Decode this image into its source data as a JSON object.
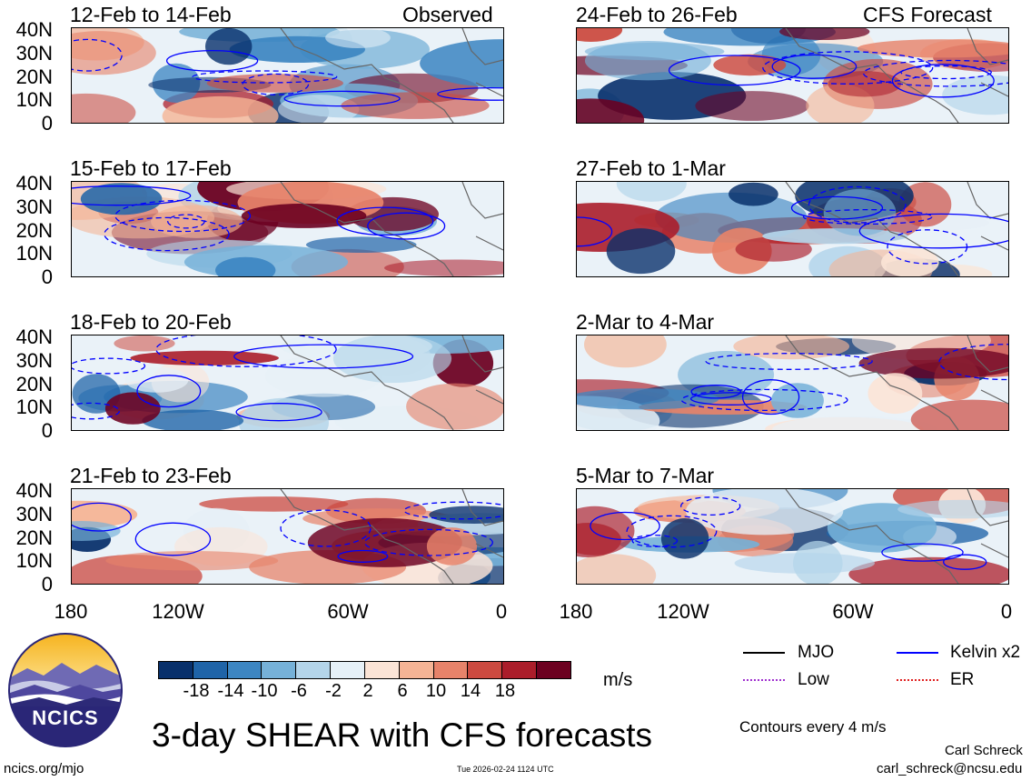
{
  "panels": [
    {
      "title": "12-Feb to 14-Feb",
      "tag": "Observed"
    },
    {
      "title": "24-Feb to 26-Feb",
      "tag": "CFS Forecast"
    },
    {
      "title": "15-Feb to 17-Feb",
      "tag": ""
    },
    {
      "title": "27-Feb to 1-Mar",
      "tag": ""
    },
    {
      "title": "18-Feb to 20-Feb",
      "tag": ""
    },
    {
      "title": "2-Mar to 4-Mar",
      "tag": ""
    },
    {
      "title": "21-Feb to 23-Feb",
      "tag": ""
    },
    {
      "title": "5-Mar to 7-Mar",
      "tag": ""
    }
  ],
  "lat_labels": [
    "40N",
    "30N",
    "20N",
    "10N",
    "0"
  ],
  "lon_labels": [
    "180",
    "120W",
    "60W",
    "0"
  ],
  "colorbar": {
    "ticks": [
      "-18",
      "-14",
      "-10",
      "-6",
      "-2",
      "2",
      "6",
      "10",
      "14",
      "18"
    ],
    "units": "m/s",
    "colors": [
      "#08306b",
      "#1f64a8",
      "#3d86c2",
      "#76b1d8",
      "#b4d5ea",
      "#e6f0f7",
      "#fbe4d6",
      "#f5b495",
      "#e7836a",
      "#cc4a40",
      "#ab1d2a",
      "#6c0020"
    ]
  },
  "legend": {
    "items": [
      {
        "label": "MJO",
        "color": "#000000"
      },
      {
        "label": "Kelvin x2",
        "color": "#0000ff"
      },
      {
        "label": "Low",
        "color": "#a030d0"
      },
      {
        "label": "ER",
        "color": "#e02020"
      }
    ],
    "contour_note": "Contours every 4 m/s"
  },
  "logo_text": "NCICS",
  "main_title": "3-day SHEAR with CFS forecasts",
  "footer": {
    "site": "ncics.org/mjo",
    "timestamp": "Tue 2026-02-24 1124 UTC",
    "author": "Carl Schreck",
    "email": "carl_schreck@ncsu.edu"
  }
}
